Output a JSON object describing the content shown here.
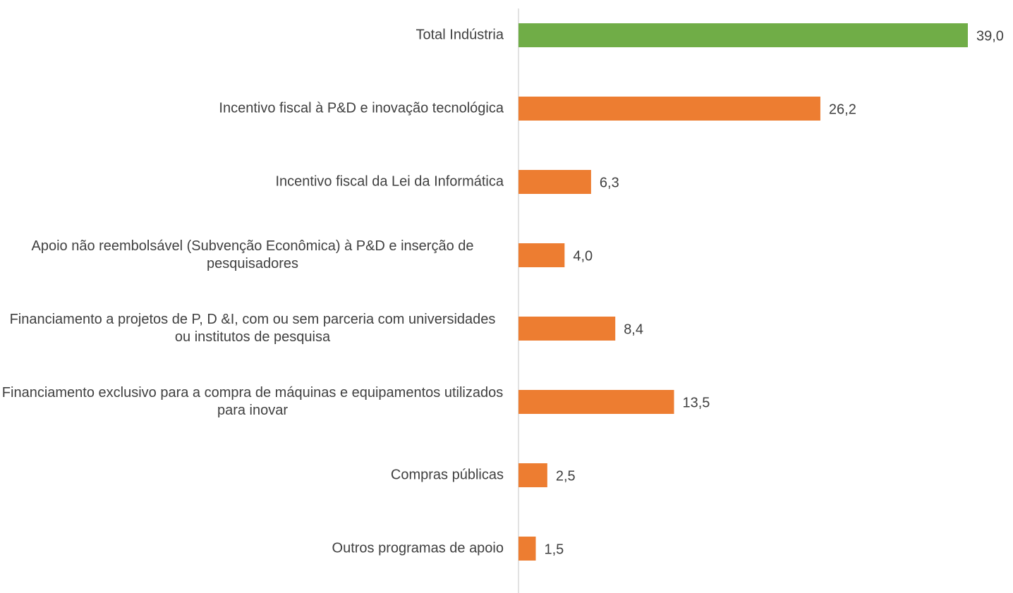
{
  "chart_data": {
    "type": "bar",
    "orientation": "horizontal",
    "categories": [
      "Total Indústria",
      "Incentivo fiscal à P&D e inovação tecnológica",
      "Incentivo fiscal da Lei da Informática",
      "Apoio não reembolsável (Subvenção Econômica) à P&D e inserção de pesquisadores",
      "Financiamento a projetos de P, D &I, com ou sem parceria com universidades ou institutos de pesquisa",
      "Financiamento exclusivo para a compra de máquinas e equipamentos utilizados para inovar",
      "Compras públicas",
      "Outros programas de apoio"
    ],
    "values": [
      39.0,
      26.2,
      6.3,
      4.0,
      8.4,
      13.5,
      2.5,
      1.5
    ],
    "value_labels": [
      "39,0",
      "26,2",
      "6,3",
      "4,0",
      "8,4",
      "13,5",
      "2,5",
      "1,5"
    ],
    "colors": [
      "#70ad47",
      "#ed7d31",
      "#ed7d31",
      "#ed7d31",
      "#ed7d31",
      "#ed7d31",
      "#ed7d31",
      "#ed7d31"
    ]
  }
}
